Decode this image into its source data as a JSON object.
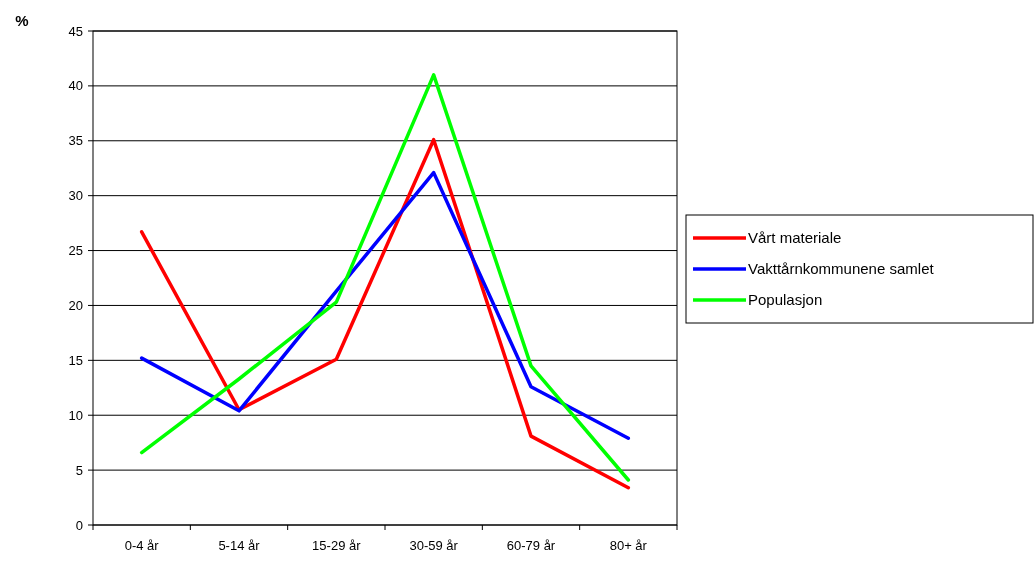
{
  "chart_data": {
    "type": "line",
    "ylabel": "%",
    "categories": [
      "0-4 år",
      "5-14 år",
      "15-29 år",
      "30-59 år",
      "60-79 år",
      "80+ år"
    ],
    "series": [
      {
        "name": "Vårt materiale",
        "color": "#ff0000",
        "values": [
          26.7,
          10.5,
          15.1,
          35.1,
          8.1,
          3.4
        ]
      },
      {
        "name": "Vakttårnkommunene samlet",
        "color": "#0000ff",
        "values": [
          15.2,
          10.4,
          21.3,
          32.1,
          12.6,
          7.9
        ]
      },
      {
        "name": "Populasjon",
        "color": "#00ff00",
        "values": [
          6.6,
          13.3,
          20.3,
          41.0,
          14.5,
          4.1
        ]
      }
    ],
    "ylim": [
      0,
      45
    ],
    "yticks": [
      0,
      5,
      10,
      15,
      20,
      25,
      30,
      35,
      40,
      45
    ],
    "grid": "y",
    "legend": "right",
    "marker": "none",
    "line_style": "solid"
  }
}
